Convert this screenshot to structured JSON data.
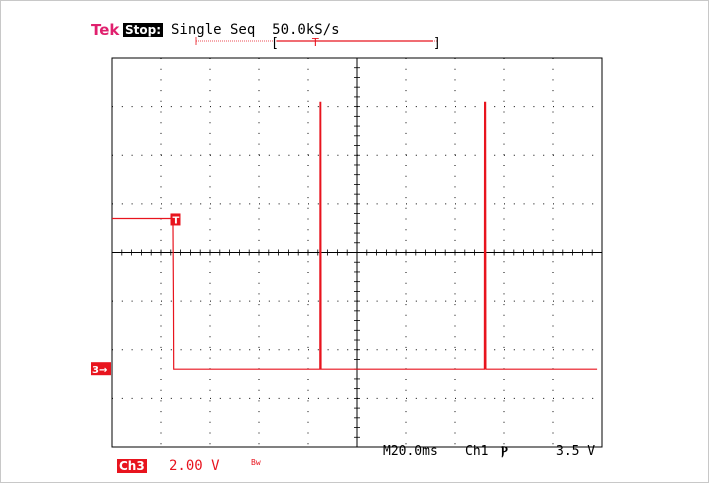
{
  "header": {
    "brand": "Tek",
    "acq_state": "Stop:",
    "acq_mode": "Single Seq  50.0kS/s"
  },
  "footer": {
    "channel": "Ch3",
    "channel_scale": "2.00 V",
    "bandwidth_mark": "Bw",
    "timebase": "M20.0ms",
    "trigger_source": "Ch1",
    "trigger_slope": "Ⲣ",
    "trigger_level": "3.5 V"
  },
  "markers": {
    "trigger_position": "T",
    "ground_reference": "3→",
    "record_open": "[",
    "record_close": "]"
  },
  "colors": {
    "trace": "#e8141e",
    "brand": "#e0206e",
    "grid": "#000000",
    "background": "#ffffff"
  },
  "chart_data": {
    "type": "line",
    "title": "",
    "xlabel": "",
    "ylabel": "",
    "grid": true,
    "xlim": [
      -50,
      150
    ],
    "ylim": [
      -3.2,
      12.8
    ],
    "units": {
      "x": "ms",
      "y": "V"
    },
    "series": [
      {
        "x": [
          -50,
          -25.2,
          -25.1,
          -24.9,
          -24.8,
          -24.6,
          10,
          9.99,
          10.01,
          34.8,
          34.9,
          35.0,
          35.2,
          35.3,
          70,
          69.99,
          70.01,
          102.0,
          102.1,
          102.3,
          102.5,
          102.6,
          145,
          148
        ],
        "y": [
          6.2,
          6.2,
          5.9,
          2.5,
          0.0,
          0.0,
          0.0,
          0.0,
          0.0,
          0.0,
          11.0,
          0.0,
          11.0,
          0.0,
          0.0,
          0.0,
          0.0,
          0.0,
          11.0,
          0.0,
          11.0,
          0.0,
          0.0,
          0.0
        ]
      }
    ]
  }
}
